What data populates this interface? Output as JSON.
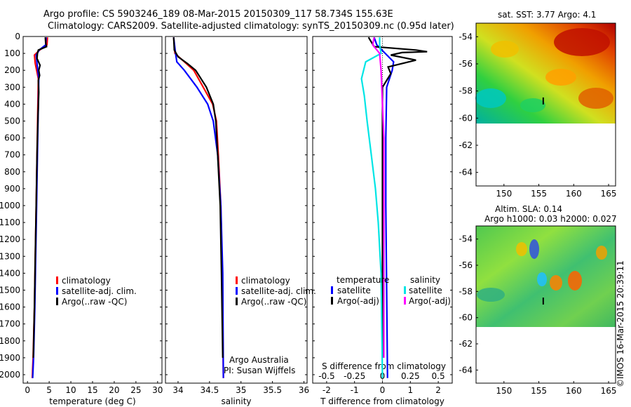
{
  "header": {
    "line1": "Argo profile: CS 5903246_189 08-Mar-2015 20150309_117 58.734S 155.63E",
    "line2": "Climatology: CARS2009. Satellite-adjusted climatology: synTS_20150309.nc (0.95d later)"
  },
  "panels": {
    "temperature": {
      "xlabel": "temperature (deg C)",
      "xticks": [
        0,
        5,
        10,
        15,
        20,
        25,
        30
      ]
    },
    "salinity": {
      "xlabel": "salinity",
      "xticks": [
        34,
        34.5,
        35,
        35.5,
        36
      ]
    },
    "difference": {
      "xlabel": "T difference from climatology",
      "s_title": "S difference from climatology",
      "xticks_t": [
        -2,
        -1,
        0,
        1,
        2
      ],
      "xticks_s": [
        "-0.5",
        "-0.25",
        "0",
        "0.25",
        "0.5"
      ]
    }
  },
  "yticks": [
    0,
    100,
    200,
    300,
    400,
    500,
    600,
    700,
    800,
    900,
    1000,
    1100,
    1200,
    1300,
    1400,
    1500,
    1600,
    1700,
    1800,
    1900,
    2000
  ],
  "legend_profiles": [
    {
      "label": "climatology",
      "color": "#ff0000"
    },
    {
      "label": "satellite-adj. clim.",
      "color": "#0000ff"
    },
    {
      "label": "Argo(..raw -QC)",
      "color": "#000000"
    }
  ],
  "legend_diff": {
    "temperature_title": "temperature",
    "salinity_title": "salinity",
    "t_items": [
      {
        "label": "satellite",
        "color": "#0000ff"
      },
      {
        "label": "Argo(-adj)",
        "color": "#000000"
      }
    ],
    "s_items": [
      {
        "label": "satellite",
        "color": "#00e5e5"
      },
      {
        "label": "Argo(-adj)",
        "color": "#ff00ff"
      }
    ]
  },
  "credit": {
    "line1": "Argo Australia",
    "line2": "PI: Susan Wijffels"
  },
  "maps": {
    "sst_title": "sat. SST: 3.77 Argo: 4.1",
    "sla_title1": "Altim. SLA: 0.14",
    "sla_title2": "Argo h1000: 0.03 h2000: 0.027",
    "yticks": [
      -54,
      -56,
      -58,
      -60,
      -62,
      -64
    ],
    "xticks": [
      150,
      155,
      160,
      165
    ]
  },
  "stamp": "©IMOS 16-Mar-2015 20:39:11",
  "chart_data": [
    {
      "type": "line",
      "xlabel": "temperature (deg C)",
      "xlim": [
        -1,
        31
      ],
      "ylim": [
        2050,
        0
      ],
      "series": [
        {
          "name": "climatology",
          "color": "#ff0000",
          "points": [
            [
              4.6,
              5
            ],
            [
              4.5,
              50
            ],
            [
              2.8,
              80
            ],
            [
              1.6,
              110
            ],
            [
              1.8,
              160
            ],
            [
              2.5,
              250
            ],
            [
              2.4,
              400
            ],
            [
              2.2,
              700
            ],
            [
              2.0,
              1000
            ],
            [
              1.8,
              1300
            ],
            [
              1.6,
              1600
            ],
            [
              1.3,
              1900
            ],
            [
              1.1,
              2020
            ]
          ]
        },
        {
          "name": "satellite-adj. clim.",
          "color": "#0000ff",
          "points": [
            [
              4.3,
              5
            ],
            [
              4.2,
              50
            ],
            [
              2.7,
              80
            ],
            [
              2.0,
              110
            ],
            [
              2.2,
              160
            ],
            [
              2.6,
              250
            ],
            [
              2.5,
              400
            ],
            [
              2.3,
              700
            ],
            [
              2.1,
              1000
            ],
            [
              1.9,
              1300
            ],
            [
              1.7,
              1600
            ],
            [
              1.4,
              1900
            ],
            [
              1.2,
              2020
            ]
          ]
        },
        {
          "name": "Argo(..raw -QC)",
          "color": "#000000",
          "points": [
            [
              4.1,
              5
            ],
            [
              4.2,
              40
            ],
            [
              4.4,
              60
            ],
            [
              2.5,
              80
            ],
            [
              2.3,
              100
            ],
            [
              2.2,
              130
            ],
            [
              2.9,
              170
            ],
            [
              2.6,
              200
            ],
            [
              2.8,
              230
            ],
            [
              2.5,
              260
            ],
            [
              2.6,
              330
            ],
            [
              2.4,
              500
            ],
            [
              2.2,
              700
            ],
            [
              2.0,
              1000
            ],
            [
              1.8,
              1300
            ],
            [
              1.6,
              1600
            ],
            [
              1.35,
              1900
            ]
          ]
        }
      ]
    },
    {
      "type": "line",
      "xlabel": "salinity",
      "xlim": [
        33.8,
        36.05
      ],
      "ylim": [
        2050,
        0
      ],
      "series": [
        {
          "name": "climatology",
          "color": "#ff0000",
          "points": [
            [
              33.93,
              5
            ],
            [
              33.95,
              100
            ],
            [
              34.1,
              150
            ],
            [
              34.25,
              200
            ],
            [
              34.4,
              300
            ],
            [
              34.55,
              400
            ],
            [
              34.61,
              500
            ],
            [
              34.64,
              700
            ],
            [
              34.68,
              1000
            ],
            [
              34.7,
              1400
            ],
            [
              34.72,
              2020
            ]
          ]
        },
        {
          "name": "satellite-adj. clim.",
          "color": "#0000ff",
          "points": [
            [
              33.93,
              5
            ],
            [
              33.96,
              100
            ],
            [
              33.98,
              150
            ],
            [
              34.1,
              200
            ],
            [
              34.3,
              300
            ],
            [
              34.47,
              400
            ],
            [
              34.56,
              500
            ],
            [
              34.63,
              700
            ],
            [
              34.68,
              1000
            ],
            [
              34.71,
              1400
            ],
            [
              34.72,
              2020
            ]
          ]
        },
        {
          "name": "Argo(..raw -QC)",
          "color": "#000000",
          "points": [
            [
              33.93,
              5
            ],
            [
              33.94,
              80
            ],
            [
              34.0,
              120
            ],
            [
              34.15,
              160
            ],
            [
              34.28,
              200
            ],
            [
              34.45,
              300
            ],
            [
              34.56,
              400
            ],
            [
              34.6,
              500
            ],
            [
              34.63,
              700
            ],
            [
              34.67,
              1000
            ],
            [
              34.69,
              1400
            ],
            [
              34.71,
              1900
            ]
          ]
        }
      ]
    },
    {
      "type": "line",
      "xlabel": "T difference from climatology",
      "xlim": [
        -2.5,
        2.5
      ],
      "ylim": [
        2050,
        0
      ],
      "series": [
        {
          "name": "temperature satellite",
          "color": "#0000ff",
          "points": [
            [
              -0.3,
              5
            ],
            [
              -0.2,
              50
            ],
            [
              0.1,
              100
            ],
            [
              0.4,
              150
            ],
            [
              0.35,
              200
            ],
            [
              0.15,
              300
            ],
            [
              0.12,
              600
            ],
            [
              0.12,
              1000
            ],
            [
              0.15,
              1500
            ],
            [
              0.18,
              2020
            ]
          ]
        },
        {
          "name": "temperature Argo(-adj)",
          "color": "#000000",
          "points": [
            [
              -0.5,
              5
            ],
            [
              -0.3,
              60
            ],
            [
              1.2,
              80
            ],
            [
              1.6,
              90
            ],
            [
              0.7,
              95
            ],
            [
              0.3,
              110
            ],
            [
              1.2,
              140
            ],
            [
              0.2,
              180
            ],
            [
              0.3,
              220
            ],
            [
              0.0,
              300
            ],
            [
              0.0,
              500
            ],
            [
              0.0,
              1000
            ],
            [
              0.0,
              1500
            ],
            [
              0.0,
              1900
            ]
          ]
        },
        {
          "name": "salinity satellite",
          "color": "#00e5e5",
          "points": [
            [
              -0.1,
              5
            ],
            [
              -0.1,
              50
            ],
            [
              -0.05,
              100
            ],
            [
              -0.6,
              150
            ],
            [
              -0.75,
              250
            ],
            [
              -0.65,
              350
            ],
            [
              -0.55,
              500
            ],
            [
              -0.4,
              700
            ],
            [
              -0.25,
              900
            ],
            [
              -0.15,
              1100
            ],
            [
              -0.05,
              1400
            ],
            [
              0.0,
              2020
            ]
          ]
        },
        {
          "name": "salinity Argo(-adj)",
          "color": "#ff00ff",
          "points": [
            [
              -0.3,
              5
            ],
            [
              -0.35,
              50
            ],
            [
              -0.1,
              100
            ],
            [
              -0.05,
              200
            ],
            [
              0.0,
              400
            ],
            [
              0.05,
              600
            ],
            [
              0.05,
              1000
            ],
            [
              0.05,
              1500
            ],
            [
              0.05,
              1900
            ]
          ]
        }
      ]
    }
  ]
}
